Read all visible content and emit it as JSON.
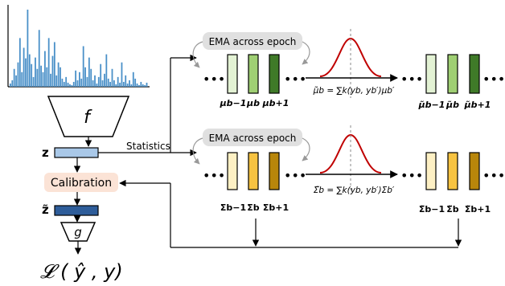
{
  "histogram": {
    "color": "#4a90c8",
    "values": [
      4,
      8,
      22,
      14,
      30,
      60,
      18,
      48,
      35,
      95,
      40,
      28,
      12,
      36,
      22,
      70,
      26,
      18,
      44,
      24,
      60,
      16,
      38,
      55,
      14,
      30,
      24,
      10,
      6,
      12,
      5,
      3,
      2,
      6,
      20,
      8,
      18,
      10,
      50,
      24,
      12,
      36,
      22,
      8,
      14,
      4,
      12,
      28,
      8,
      16,
      40,
      10,
      6,
      22,
      8,
      3,
      12,
      5,
      30,
      6,
      14,
      4,
      8,
      3,
      18,
      10,
      4,
      2,
      6,
      3,
      2,
      5
    ]
  },
  "left": {
    "f_label": "f",
    "z_label": "z",
    "calibration_label": "Calibration",
    "ztilde_label": "z̃",
    "g_label": "g",
    "loss_label": "𝓛 ( ŷ , y)",
    "statistics_label": "Statistics"
  },
  "top_row": {
    "ema_label": "EMA across epoch",
    "formula": "μ̃b = ∑k(yb, yb′)μb′",
    "left_labels": [
      "μb−1",
      "μb",
      "μb+1"
    ],
    "right_labels": [
      "μ̃b−1",
      "μ̃b",
      "μ̃b+1"
    ],
    "colors": [
      "#e3f2d4",
      "#9fcf73",
      "#3f7a28"
    ]
  },
  "bottom_row": {
    "ema_label": "EMA across epoch",
    "formula": "Σ̃b = ∑k(yb, yb′)Σb′",
    "left_labels": [
      "Σb−1",
      "Σb",
      "Σb+1"
    ],
    "right_labels": [
      "Σ̃b−1",
      "Σ̃b",
      "Σ̃b+1"
    ],
    "colors": [
      "#fdf0c4",
      "#f7c341",
      "#b8860b"
    ]
  },
  "colors": {
    "z_bar": "#a9c8e8",
    "ztilde_bar": "#2e5d9a",
    "calibration_bg": "#fbe3d6",
    "gaussian": "#c00000",
    "ema_bg": "#e0e0e0"
  },
  "dots": "•••"
}
